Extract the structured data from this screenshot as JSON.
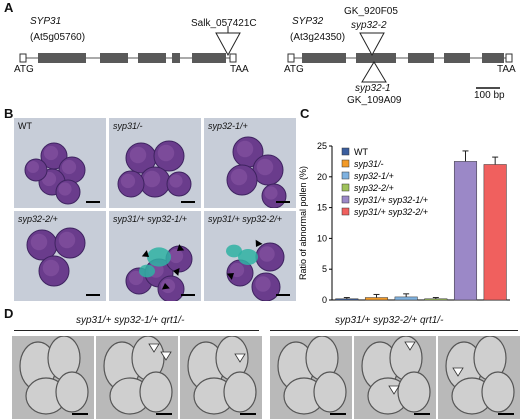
{
  "panels": {
    "a": "A",
    "b": "B",
    "c": "C",
    "d": "D"
  },
  "gene_maps": {
    "left": {
      "gene": "SYP31",
      "locus": "(At5g05760)",
      "insertion": "Salk_057421C",
      "start": "ATG",
      "stop": "TAA"
    },
    "right": {
      "gene": "SYP32",
      "locus": "(At3g24350)",
      "insertion_top_id": "GK_920F05",
      "insertion_top_allele": "syp32-2",
      "insertion_bottom_allele": "syp32-1",
      "insertion_bottom_id": "GK_109A09",
      "start": "ATG",
      "stop": "TAA",
      "scale": "100 bp"
    }
  },
  "pollen_labels": [
    "WT",
    "syp31/-",
    "syp32-1/+",
    "syp32-2/+",
    "syp31/+ syp32-1/+",
    "syp31/+ syp32-2/+"
  ],
  "qrt_groups": [
    "syp31/+ syp32-1/+ qrt1/-",
    "syp31/+ syp32-2/+ qrt1/-"
  ],
  "colors": {
    "wt": "#3b5e9e",
    "syp31": "#f29a27",
    "syp32_1": "#7fb2e0",
    "syp32_2": "#9fc25b",
    "double_1": "#9b88c7",
    "double_2": "#f0605e",
    "pollen_purple": "#6a3c8c",
    "pollen_stain": "#2fb2a3"
  },
  "chart_data": {
    "type": "bar",
    "ylabel": "Ratio of abnormal pollen (%)",
    "ylim": [
      0,
      25
    ],
    "yticks": [
      0,
      5,
      10,
      15,
      20,
      25
    ],
    "categories": [
      "WT",
      "syp31/-",
      "syp32-1/+",
      "syp32-2/+",
      "syp31/+ syp32-1/+",
      "syp31/+ syp32-2/+"
    ],
    "values": [
      0.2,
      0.4,
      0.5,
      0.2,
      22.5,
      22.0
    ],
    "errors": [
      0.2,
      0.5,
      0.5,
      0.2,
      1.7,
      1.2
    ],
    "legend": [
      "WT",
      "syp31/-",
      "syp32-1/+",
      "syp32-2/+",
      "syp31/+ syp32-1/+",
      "syp31/+ syp32-2/+"
    ],
    "legend_position": "top-left"
  }
}
